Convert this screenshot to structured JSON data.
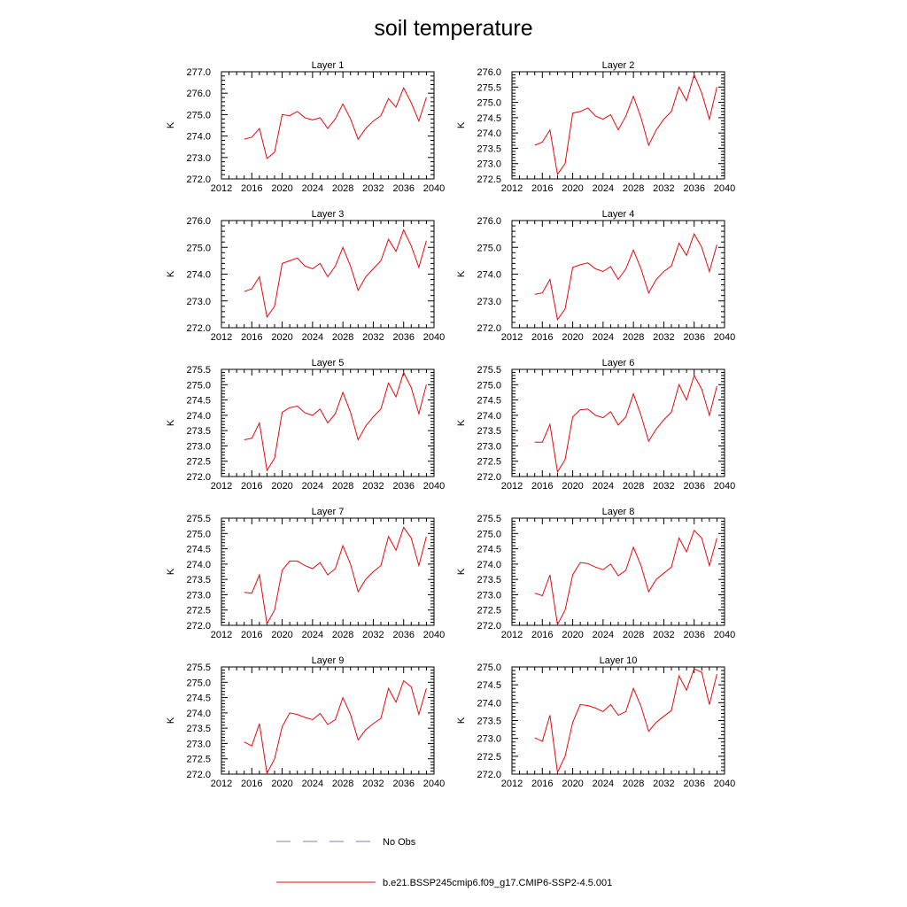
{
  "chart_data": {
    "type": "line",
    "title": "soil temperature",
    "x": [
      2015,
      2016,
      2017,
      2018,
      2019,
      2020,
      2021,
      2022,
      2023,
      2024,
      2025,
      2026,
      2027,
      2028,
      2029,
      2030,
      2031,
      2032,
      2033,
      2034,
      2035,
      2036,
      2037,
      2038,
      2039
    ],
    "xticks": [
      "2012",
      "2016",
      "2020",
      "2024",
      "2028",
      "2032",
      "2036",
      "2040"
    ],
    "xlim": [
      2012,
      2040
    ],
    "grid": false,
    "legend": {
      "placement": "bottom",
      "entries": [
        {
          "label": "No Obs",
          "color": "#7b7fc4",
          "style": "dashed"
        },
        {
          "label": "b.e21.BSSP245cmip6.f09_g17.CMIP6-SSP2-4.5.001",
          "color": "#e8080e",
          "style": "solid"
        }
      ]
    },
    "series_color": "#e8080e",
    "panels": [
      {
        "title": "Layer 1",
        "ylabel": "K",
        "ylim": [
          272.0,
          277.0
        ],
        "yticks": [
          "272.0",
          "273.0",
          "274.0",
          "275.0",
          "276.0",
          "277.0"
        ],
        "series": [
          {
            "name": "b.e21.BSSP245cmip6.f09_g17.CMIP6-SSP2-4.5.001",
            "values": [
              273.85,
              273.95,
              274.35,
              272.95,
              273.25,
              275.0,
              274.95,
              275.15,
              274.85,
              274.75,
              274.85,
              274.35,
              274.8,
              275.5,
              274.8,
              273.85,
              274.35,
              274.7,
              274.95,
              275.75,
              275.35,
              276.25,
              275.55,
              274.7,
              275.8
            ]
          }
        ]
      },
      {
        "title": "Layer 2",
        "ylabel": "K",
        "ylim": [
          272.5,
          276.0
        ],
        "yticks": [
          "272.5",
          "273.0",
          "273.5",
          "274.0",
          "274.5",
          "275.0",
          "275.5",
          "276.0"
        ],
        "series": [
          {
            "name": "b.e21.BSSP245cmip6.f09_g17.CMIP6-SSP2-4.5.001",
            "values": [
              273.6,
              273.7,
              274.1,
              272.65,
              273.0,
              274.65,
              274.7,
              274.82,
              274.55,
              274.45,
              274.6,
              274.1,
              274.55,
              275.2,
              274.5,
              273.6,
              274.1,
              274.45,
              274.7,
              275.5,
              275.05,
              275.9,
              275.3,
              274.45,
              275.5
            ]
          }
        ]
      },
      {
        "title": "Layer 3",
        "ylabel": "K",
        "ylim": [
          272.0,
          276.0
        ],
        "yticks": [
          "272.0",
          "273.0",
          "274.0",
          "275.0",
          "276.0"
        ],
        "series": [
          {
            "name": "b.e21.BSSP245cmip6.f09_g17.CMIP6-SSP2-4.5.001",
            "values": [
              273.35,
              273.45,
              273.9,
              272.4,
              272.8,
              274.4,
              274.5,
              274.6,
              274.3,
              274.2,
              274.4,
              273.9,
              274.3,
              275.0,
              274.3,
              273.4,
              273.9,
              274.2,
              274.5,
              275.3,
              274.85,
              275.65,
              275.05,
              274.25,
              275.25
            ]
          }
        ]
      },
      {
        "title": "Layer 4",
        "ylabel": "K",
        "ylim": [
          272.0,
          276.0
        ],
        "yticks": [
          "272.0",
          "273.0",
          "274.0",
          "275.0",
          "276.0"
        ],
        "series": [
          {
            "name": "b.e21.BSSP245cmip6.f09_g17.CMIP6-SSP2-4.5.001",
            "values": [
              273.25,
              273.3,
              273.8,
              272.3,
              272.7,
              274.25,
              274.35,
              274.42,
              274.2,
              274.1,
              274.28,
              273.8,
              274.2,
              274.9,
              274.2,
              273.3,
              273.8,
              274.1,
              274.3,
              275.15,
              274.7,
              275.5,
              275.0,
              274.1,
              275.1
            ]
          }
        ]
      },
      {
        "title": "Layer 5",
        "ylabel": "K",
        "ylim": [
          272.0,
          275.5
        ],
        "yticks": [
          "272.0",
          "272.5",
          "273.0",
          "273.5",
          "274.0",
          "274.5",
          "275.0",
          "275.5"
        ],
        "series": [
          {
            "name": "b.e21.BSSP245cmip6.f09_g17.CMIP6-SSP2-4.5.001",
            "values": [
              273.2,
              273.25,
              273.75,
              272.2,
              272.6,
              274.1,
              274.25,
              274.3,
              274.08,
              274.0,
              274.2,
              273.75,
              274.05,
              274.75,
              274.1,
              273.2,
              273.65,
              273.95,
              274.2,
              275.05,
              274.6,
              275.4,
              274.9,
              274.05,
              275.0
            ]
          }
        ]
      },
      {
        "title": "Layer 6",
        "ylabel": "K",
        "ylim": [
          272.0,
          275.5
        ],
        "yticks": [
          "272.0",
          "272.5",
          "273.0",
          "273.5",
          "274.0",
          "274.5",
          "275.0",
          "275.5"
        ],
        "series": [
          {
            "name": "b.e21.BSSP245cmip6.f09_g17.CMIP6-SSP2-4.5.001",
            "values": [
              273.12,
              273.12,
              273.7,
              272.15,
              272.55,
              273.95,
              274.18,
              274.2,
              274.0,
              273.92,
              274.12,
              273.68,
              273.95,
              274.7,
              274.0,
              273.15,
              273.55,
              273.85,
              274.1,
              275.0,
              274.5,
              275.3,
              274.85,
              274.0,
              274.95
            ]
          }
        ]
      },
      {
        "title": "Layer 7",
        "ylabel": "K",
        "ylim": [
          272.0,
          275.5
        ],
        "yticks": [
          "272.0",
          "272.5",
          "273.0",
          "273.5",
          "274.0",
          "274.5",
          "275.0",
          "275.5"
        ],
        "series": [
          {
            "name": "b.e21.BSSP245cmip6.f09_g17.CMIP6-SSP2-4.5.001",
            "values": [
              273.08,
              273.05,
              273.65,
              272.05,
              272.5,
              273.8,
              274.1,
              274.1,
              273.95,
              273.85,
              274.05,
              273.65,
              273.85,
              274.6,
              274.0,
              273.1,
              273.5,
              273.75,
              273.95,
              274.9,
              274.45,
              275.2,
              274.85,
              273.95,
              274.9
            ]
          }
        ]
      },
      {
        "title": "Layer 8",
        "ylabel": "K",
        "ylim": [
          272.0,
          275.5
        ],
        "yticks": [
          "272.0",
          "272.5",
          "273.0",
          "273.5",
          "274.0",
          "274.5",
          "275.0",
          "275.5"
        ],
        "series": [
          {
            "name": "b.e21.BSSP245cmip6.f09_g17.CMIP6-SSP2-4.5.001",
            "values": [
              273.05,
              272.97,
              273.65,
              272.02,
              272.5,
              273.65,
              274.05,
              274.02,
              273.9,
              273.82,
              274.0,
              273.62,
              273.8,
              274.55,
              273.95,
              273.1,
              273.5,
              273.7,
              273.9,
              274.85,
              274.4,
              275.1,
              274.85,
              273.95,
              274.85
            ]
          }
        ]
      },
      {
        "title": "Layer 9",
        "ylabel": "K",
        "ylim": [
          272.0,
          275.5
        ],
        "yticks": [
          "272.0",
          "272.5",
          "273.0",
          "273.5",
          "274.0",
          "274.5",
          "275.0",
          "275.5"
        ],
        "series": [
          {
            "name": "b.e21.BSSP245cmip6.f09_g17.CMIP6-SSP2-4.5.001",
            "values": [
              273.05,
              272.92,
              273.65,
              272.02,
              272.5,
              273.55,
              274.0,
              273.95,
              273.85,
              273.78,
              273.98,
              273.62,
              273.78,
              274.5,
              273.95,
              273.12,
              273.45,
              273.65,
              273.82,
              274.8,
              274.35,
              275.05,
              274.85,
              273.95,
              274.8
            ]
          }
        ]
      },
      {
        "title": "Layer 10",
        "ylabel": "K",
        "ylim": [
          272.0,
          275.0
        ],
        "yticks": [
          "272.0",
          "272.5",
          "273.0",
          "273.5",
          "274.0",
          "274.5",
          "275.0"
        ],
        "series": [
          {
            "name": "b.e21.BSSP245cmip6.f09_g17.CMIP6-SSP2-4.5.001",
            "values": [
              273.02,
              272.92,
              273.65,
              272.05,
              272.5,
              273.45,
              273.95,
              273.92,
              273.85,
              273.75,
              273.95,
              273.65,
              273.75,
              274.4,
              273.9,
              273.2,
              273.45,
              273.62,
              273.78,
              274.75,
              274.35,
              274.95,
              274.85,
              273.95,
              274.8
            ]
          }
        ]
      }
    ]
  }
}
